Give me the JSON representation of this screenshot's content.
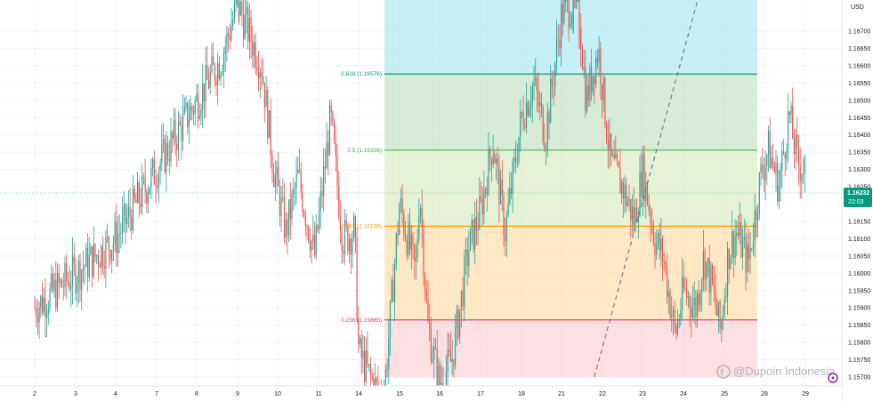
{
  "chart_data": {
    "type": "candlestick",
    "currency": "USD",
    "ylim": [
      1.157,
      1.168
    ],
    "price_ticks": [
      1.167,
      1.1665,
      1.166,
      1.1655,
      1.165,
      1.1645,
      1.164,
      1.1635,
      1.163,
      1.1625,
      1.1615,
      1.161,
      1.1605,
      1.16,
      1.1595,
      1.159,
      1.1585,
      1.158,
      1.1575,
      1.157
    ],
    "date_labels": [
      "2",
      "3",
      "4",
      "7",
      "8",
      "9",
      "10",
      "11",
      "14",
      "15",
      "16",
      "17",
      "18",
      "21",
      "22",
      "23",
      "24",
      "25",
      "28",
      "29"
    ],
    "current_price": "1.16232",
    "countdown": "22:03",
    "fib_levels": [
      {
        "label": "0.618 (1.16576)",
        "value": 1.16576,
        "color": "#089981"
      },
      {
        "label": "0.5 (1.16356)",
        "value": 1.16356,
        "color": "#4caf50"
      },
      {
        "label": "0.382 (1.16136)",
        "value": 1.16136,
        "color": "#ff9800"
      },
      {
        "label": "0.236 (1.15865)",
        "value": 1.15865,
        "color": "#f23645"
      }
    ],
    "fib_zones": [
      {
        "from": 1.16576,
        "to": 1.168,
        "color": "#b2ebf2"
      },
      {
        "from": 1.16356,
        "to": 1.16576,
        "color": "#c8e6c9"
      },
      {
        "from": 1.16136,
        "to": 1.16356,
        "color": "#dcedc8"
      },
      {
        "from": 1.15865,
        "to": 1.16136,
        "color": "#ffe0b2"
      },
      {
        "from": 1.157,
        "to": 1.15865,
        "color": "#fcd5d9"
      }
    ],
    "trend_line": {
      "from_date": 15.8,
      "from_price": 1.157,
      "to_date": 18.35,
      "to_price": 1.168
    },
    "series": [
      {
        "d": 2,
        "p": 1.159
      },
      {
        "d": 3,
        "p": 1.16
      },
      {
        "d": 4,
        "p": 1.161
      },
      {
        "d": 6.6,
        "p": 1.1662
      },
      {
        "d": 7,
        "p": 1.1678
      },
      {
        "d": 7.6,
        "p": 1.166
      },
      {
        "d": 7.9,
        "p": 1.163
      },
      {
        "d": 8.2,
        "p": 1.1612
      },
      {
        "d": 8.5,
        "p": 1.1628
      },
      {
        "d": 8.9,
        "p": 1.1605
      },
      {
        "d": 9.3,
        "p": 1.1645
      },
      {
        "d": 9.6,
        "p": 1.161
      },
      {
        "d": 9.9,
        "p": 1.1612
      },
      {
        "d": 10.0,
        "p": 1.1577
      },
      {
        "d": 10.6,
        "p": 1.1562
      },
      {
        "d": 11.0,
        "p": 1.162
      },
      {
        "d": 11.4,
        "p": 1.16
      },
      {
        "d": 11.5,
        "p": 1.1625
      },
      {
        "d": 11.7,
        "p": 1.1585
      },
      {
        "d": 12.0,
        "p": 1.1568
      },
      {
        "d": 12.3,
        "p": 1.1575
      },
      {
        "d": 12.5,
        "p": 1.159
      },
      {
        "d": 12.7,
        "p": 1.1607
      },
      {
        "d": 13.0,
        "p": 1.1618
      },
      {
        "d": 13.3,
        "p": 1.1638
      },
      {
        "d": 13.6,
        "p": 1.1612
      },
      {
        "d": 14.0,
        "p": 1.1645
      },
      {
        "d": 14.3,
        "p": 1.1655
      },
      {
        "d": 14.6,
        "p": 1.164
      },
      {
        "d": 15.0,
        "p": 1.1675
      },
      {
        "d": 15.4,
        "p": 1.168
      },
      {
        "d": 15.6,
        "p": 1.165
      },
      {
        "d": 15.9,
        "p": 1.1665
      },
      {
        "d": 16.2,
        "p": 1.1632
      },
      {
        "d": 16.5,
        "p": 1.1625
      },
      {
        "d": 16.8,
        "p": 1.1615
      },
      {
        "d": 17.0,
        "p": 1.163
      },
      {
        "d": 17.3,
        "p": 1.161
      },
      {
        "d": 17.5,
        "p": 1.1605
      },
      {
        "d": 17.8,
        "p": 1.1582
      },
      {
        "d": 18.0,
        "p": 1.1595
      },
      {
        "d": 18.3,
        "p": 1.159
      },
      {
        "d": 18.5,
        "p": 1.1605
      },
      {
        "d": 18.7,
        "p": 1.1596
      },
      {
        "d": 18.9,
        "p": 1.1583
      },
      {
        "d": 19.1,
        "p": 1.1606
      },
      {
        "d": 19.3,
        "p": 1.1612
      },
      {
        "d": 19.6,
        "p": 1.1603
      },
      {
        "d": 19.9,
        "p": 1.1628
      },
      {
        "d": 20.1,
        "p": 1.1636
      },
      {
        "d": 20.35,
        "p": 1.1625
      },
      {
        "d": 20.6,
        "p": 1.1646
      },
      {
        "d": 20.8,
        "p": 1.1632
      },
      {
        "d": 21.0,
        "p": 1.163
      },
      {
        "d": 21.2,
        "p": 1.1655
      },
      {
        "d": 21.4,
        "p": 1.1665
      },
      {
        "d": 21.7,
        "p": 1.1668
      },
      {
        "d": 22.0,
        "p": 1.1655
      },
      {
        "d": 22.3,
        "p": 1.1642
      },
      {
        "d": 22.6,
        "p": 1.1623
      }
    ]
  },
  "watermark": "@Dupoin Indonesia",
  "icons": {
    "tv_logo": "tradingview-logo-icon",
    "settings": "gear-icon"
  }
}
